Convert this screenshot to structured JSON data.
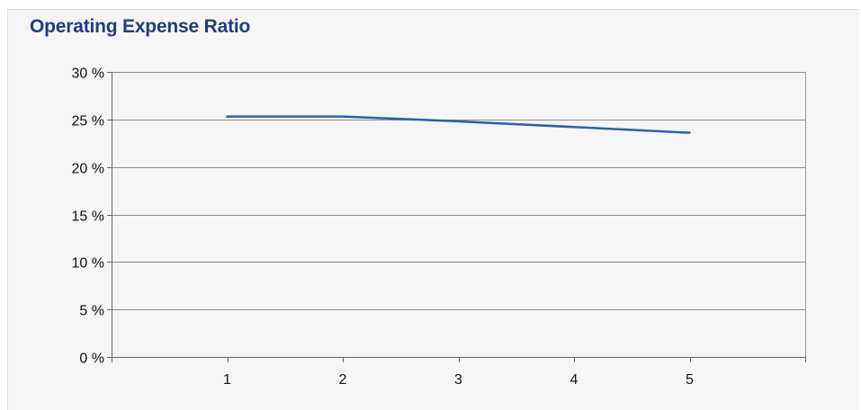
{
  "chart_data": {
    "type": "line",
    "title": "Operating Expense Ratio",
    "xlabel": "",
    "ylabel": "",
    "x": [
      1,
      2,
      3,
      4,
      5
    ],
    "x_tick_labels": [
      "1",
      "2",
      "3",
      "4",
      "5"
    ],
    "xlim": [
      0,
      6
    ],
    "ylim": [
      0,
      30
    ],
    "y_ticks": [
      0,
      5,
      10,
      15,
      20,
      25,
      30
    ],
    "y_tick_labels": [
      "0 %",
      "5 %",
      "10 %",
      "15 %",
      "20 %",
      "25 %",
      "30 %"
    ],
    "grid": true,
    "legend": "none",
    "series": [
      {
        "values": [
          25.3,
          25.3,
          24.8,
          24.2,
          23.6
        ],
        "color": "#2f5fa7"
      }
    ],
    "colors": {
      "title": "#1f3f7a",
      "grid": "#8c8c8c",
      "background": "#f5f5f5"
    }
  }
}
